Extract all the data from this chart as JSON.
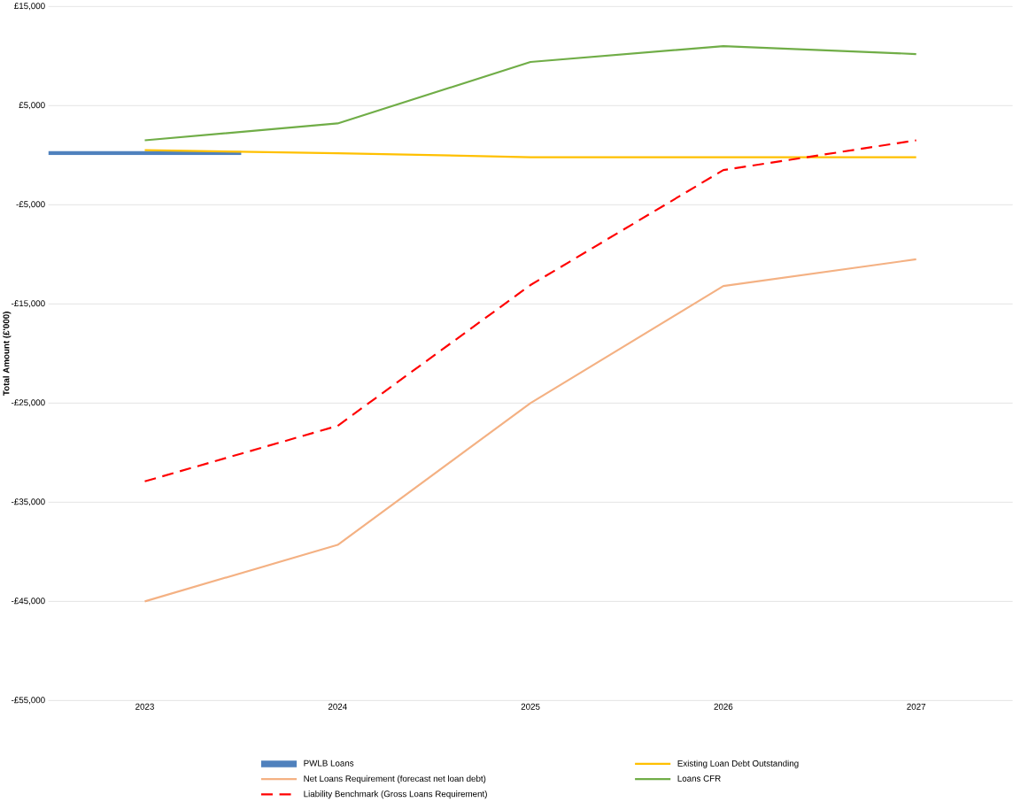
{
  "chart_data": {
    "type": "line",
    "ylabel": "Total Amount (£'000)",
    "categories": [
      "2023",
      "2024",
      "2025",
      "2026",
      "2027"
    ],
    "series": [
      {
        "name": "PWLB Loans",
        "type": "bar",
        "color": "#4f81bd",
        "values": [
          400,
          0,
          0,
          0,
          0
        ]
      },
      {
        "name": "Existing Loan Debt Outstanding",
        "color": "#ffc000",
        "values": [
          500,
          200,
          -200,
          -200,
          -200
        ]
      },
      {
        "name": "Net Loans Requirement (forecast net loan debt)",
        "color": "#f4b183",
        "values": [
          -45000,
          -39300,
          -25000,
          -13200,
          -10500
        ]
      },
      {
        "name": "Loans CFR",
        "color": "#70ad47",
        "values": [
          1500,
          3200,
          9400,
          11000,
          10200
        ]
      },
      {
        "name": "Liability Benchmark (Gross Loans Requirement)",
        "color": "#ff0000",
        "line_style": "dashed",
        "values": [
          -32900,
          -27300,
          -13100,
          -1500,
          1500
        ]
      }
    ],
    "ylim": [
      -55000,
      15000
    ],
    "yticks": [
      {
        "value": -55000,
        "label": "-£55,000"
      },
      {
        "value": -45000,
        "label": "-£45,000"
      },
      {
        "value": -35000,
        "label": "-£35,000"
      },
      {
        "value": -25000,
        "label": "-£25,000"
      },
      {
        "value": -15000,
        "label": "-£15,000"
      },
      {
        "value": -5000,
        "label": "-£5,000"
      },
      {
        "value": 5000,
        "label": "£5,000"
      },
      {
        "value": 15000,
        "label": "£15,000"
      }
    ],
    "grid": "y",
    "legend": "bottom",
    "marker": "none"
  }
}
